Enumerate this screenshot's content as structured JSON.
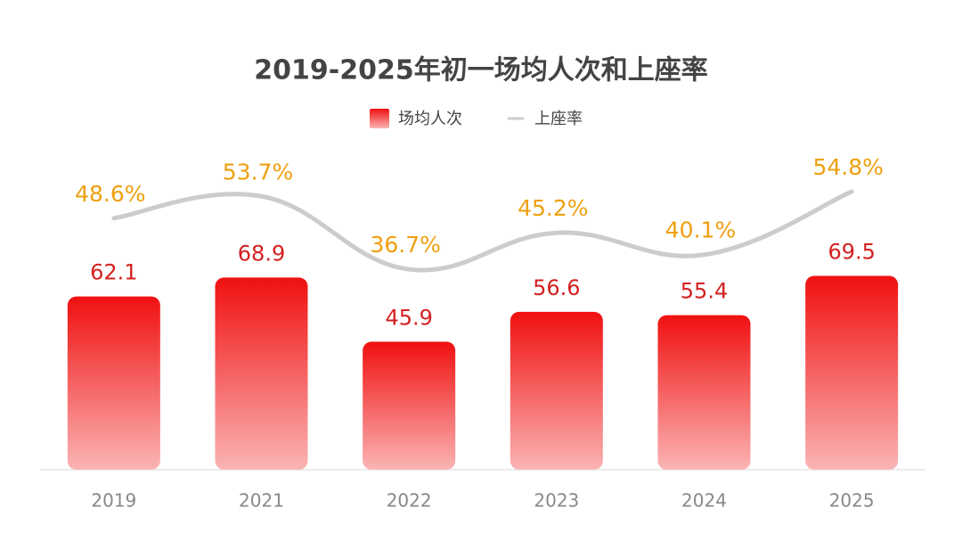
{
  "chart_data": {
    "type": "bar-line",
    "title": "2019-2025年初一场均人次和上座率",
    "categories": [
      "2019",
      "2021",
      "2022",
      "2023",
      "2024",
      "2025"
    ],
    "series": [
      {
        "name": "场均人次",
        "type": "bar",
        "color": "#f01818",
        "values": [
          62.1,
          68.9,
          45.9,
          56.6,
          55.4,
          69.5
        ]
      },
      {
        "name": "上座率",
        "type": "line",
        "axis": "y2",
        "color": "#cccccc",
        "label_color": "#eea010",
        "values": [
          48.6,
          53.7,
          36.7,
          45.2,
          40.1,
          54.8
        ],
        "value_labels": [
          "48.6%",
          "53.7%",
          "36.7%",
          "45.2%",
          "40.1%",
          "54.8%"
        ]
      }
    ],
    "ylim": [
      0,
      100
    ],
    "y2lim": [
      -10,
      55
    ],
    "legend": "top"
  }
}
